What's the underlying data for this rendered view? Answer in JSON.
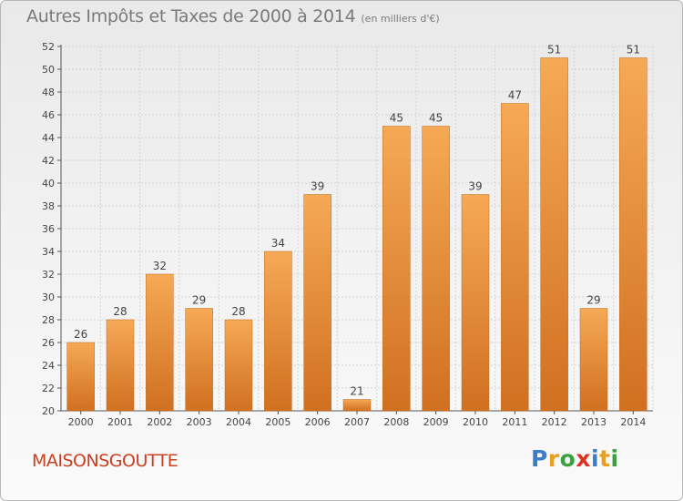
{
  "header": {
    "title": "Autres Impôts et Taxes de 2000 à 2014",
    "subtitle": "(en milliers d'€)"
  },
  "footer": {
    "commune": "MAISONSGOUTTE",
    "logo_text": "Proxiti",
    "logo_letters": [
      {
        "char": "P",
        "color": "#3a7ec8"
      },
      {
        "char": "r",
        "color": "#e8a020"
      },
      {
        "char": "o",
        "color": "#3aa040"
      },
      {
        "char": "x",
        "color": "#e03020"
      },
      {
        "char": "i",
        "color": "#3a7ec8"
      },
      {
        "char": "t",
        "color": "#e8a020"
      },
      {
        "char": "i",
        "color": "#3aa040"
      }
    ]
  },
  "colors": {
    "bar_light": "#f6a955",
    "bar_dark": "#d07020",
    "title": "#7a7a7a",
    "commune": "#c94020",
    "grid": "#d4d4d4"
  },
  "chart_data": {
    "type": "bar",
    "categories": [
      "2000",
      "2001",
      "2002",
      "2003",
      "2004",
      "2005",
      "2006",
      "2007",
      "2008",
      "2009",
      "2010",
      "2011",
      "2012",
      "2013",
      "2014"
    ],
    "values": [
      26,
      28,
      32,
      29,
      28,
      34,
      39,
      21,
      45,
      45,
      39,
      47,
      51,
      29,
      51
    ],
    "ylim": [
      20,
      52
    ],
    "yticks": [
      20,
      22,
      24,
      26,
      28,
      30,
      32,
      34,
      36,
      38,
      40,
      42,
      44,
      46,
      48,
      50,
      52
    ],
    "grid": true,
    "legend": "none"
  }
}
